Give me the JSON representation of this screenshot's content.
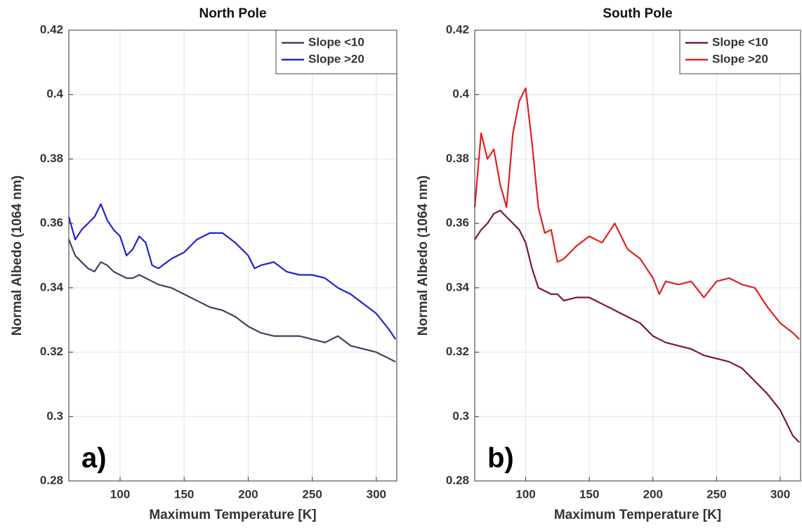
{
  "chart_data": [
    {
      "type": "line",
      "title": "North Pole",
      "xlabel": "Maximum Temperature [K]",
      "ylabel": "Normal Albedo (1064 nm)",
      "annotation": "a)",
      "x": [
        60,
        65,
        70,
        75,
        80,
        85,
        90,
        95,
        100,
        105,
        110,
        115,
        120,
        125,
        130,
        140,
        150,
        160,
        170,
        180,
        190,
        200,
        205,
        210,
        220,
        230,
        240,
        250,
        260,
        270,
        280,
        290,
        300,
        310,
        315
      ],
      "series": [
        {
          "name": "Slope <10",
          "color": "#3a4560",
          "values": [
            0.355,
            0.35,
            0.348,
            0.346,
            0.345,
            0.348,
            0.347,
            0.345,
            0.344,
            0.343,
            0.343,
            0.344,
            0.343,
            0.342,
            0.341,
            0.34,
            0.338,
            0.336,
            0.334,
            0.333,
            0.331,
            0.328,
            0.327,
            0.326,
            0.325,
            0.325,
            0.325,
            0.324,
            0.323,
            0.325,
            0.322,
            0.321,
            0.32,
            0.318,
            0.317
          ]
        },
        {
          "name": "Slope >20",
          "color": "#2222d0",
          "values": [
            0.362,
            0.355,
            0.358,
            0.36,
            0.362,
            0.366,
            0.361,
            0.358,
            0.356,
            0.35,
            0.352,
            0.356,
            0.354,
            0.347,
            0.346,
            0.349,
            0.351,
            0.355,
            0.357,
            0.357,
            0.354,
            0.35,
            0.346,
            0.347,
            0.348,
            0.345,
            0.344,
            0.344,
            0.343,
            0.34,
            0.338,
            0.335,
            0.332,
            0.327,
            0.324
          ]
        }
      ],
      "xlim": [
        60,
        316
      ],
      "xticks": [
        100,
        150,
        200,
        250,
        300
      ],
      "ylim": [
        0.28,
        0.42
      ],
      "yticks": [
        0.28,
        0.3,
        0.32,
        0.34,
        0.36,
        0.38,
        0.4,
        0.42
      ],
      "grid": true,
      "legend": "upper right"
    },
    {
      "type": "line",
      "title": "South Pole",
      "xlabel": "Maximum Temperature [K]",
      "ylabel": "Normal Albedo (1064 nm)",
      "annotation": "b)",
      "x": [
        60,
        65,
        70,
        75,
        80,
        85,
        90,
        95,
        100,
        105,
        110,
        115,
        120,
        125,
        130,
        140,
        150,
        160,
        170,
        180,
        190,
        200,
        205,
        210,
        220,
        230,
        240,
        250,
        260,
        270,
        280,
        290,
        300,
        310,
        315
      ],
      "series": [
        {
          "name": "Slope <10",
          "color": "#7a1a2a",
          "values": [
            0.355,
            0.358,
            0.36,
            0.363,
            0.364,
            0.362,
            0.36,
            0.358,
            0.354,
            0.346,
            0.34,
            0.339,
            0.338,
            0.338,
            0.336,
            0.337,
            0.337,
            0.335,
            0.333,
            0.331,
            0.329,
            0.325,
            0.324,
            0.323,
            0.322,
            0.321,
            0.319,
            0.318,
            0.317,
            0.315,
            0.311,
            0.307,
            0.302,
            0.294,
            0.292
          ]
        },
        {
          "name": "Slope >20",
          "color": "#e02020",
          "values": [
            0.365,
            0.388,
            0.38,
            0.383,
            0.372,
            0.365,
            0.388,
            0.398,
            0.402,
            0.385,
            0.365,
            0.357,
            0.358,
            0.348,
            0.349,
            0.353,
            0.356,
            0.354,
            0.36,
            0.352,
            0.349,
            0.343,
            0.338,
            0.342,
            0.341,
            0.342,
            0.337,
            0.342,
            0.343,
            0.341,
            0.34,
            0.334,
            0.329,
            0.326,
            0.324
          ]
        }
      ],
      "xlim": [
        60,
        316
      ],
      "xticks": [
        100,
        150,
        200,
        250,
        300
      ],
      "ylim": [
        0.28,
        0.42
      ],
      "yticks": [
        0.28,
        0.3,
        0.32,
        0.34,
        0.36,
        0.38,
        0.4,
        0.42
      ],
      "grid": true,
      "legend": "upper right"
    }
  ]
}
